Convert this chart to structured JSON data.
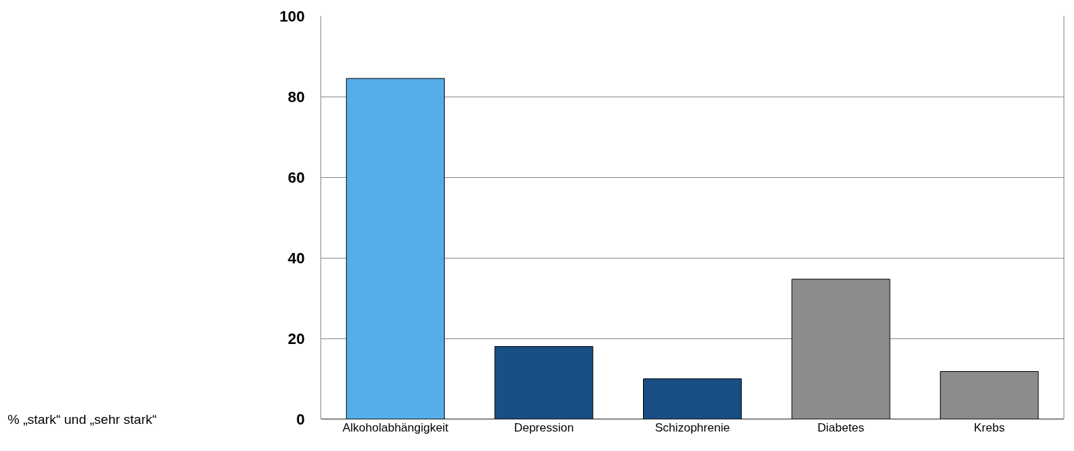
{
  "chart_data": {
    "type": "bar",
    "annotations": [
      "% „stark“ und „sehr stark“"
    ],
    "categories": [
      "Alkoholabhängigkeit",
      "Depression",
      "Schizophrenie",
      "Diabetes",
      "Krebs"
    ],
    "values": [
      84.5,
      18,
      10,
      34.7,
      11.8
    ],
    "colors": [
      "#55aee8",
      "#1a4f85",
      "#1a4f85",
      "#8c8c8c",
      "#8c8c8c"
    ],
    "ylim": [
      0,
      100
    ],
    "yticks": [
      0,
      20,
      40,
      60,
      80,
      100
    ],
    "grid": "y",
    "legend": false
  }
}
